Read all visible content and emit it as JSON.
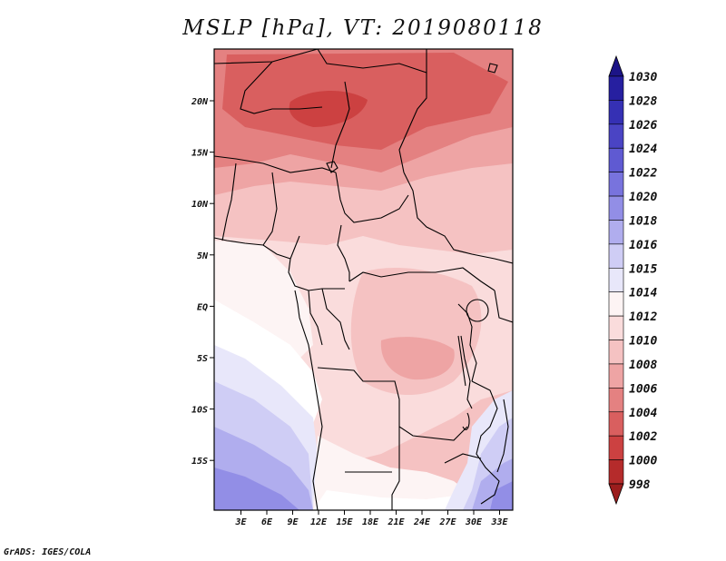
{
  "title": "MSLP [hPa], VT: 2019080118",
  "credit": "GrADS: IGES/COLA",
  "map": {
    "lon_labels": [
      "3E",
      "6E",
      "9E",
      "12E",
      "15E",
      "18E",
      "21E",
      "24E",
      "27E",
      "30E",
      "33E"
    ],
    "lat_labels": [
      "20N",
      "15N",
      "10N",
      "5N",
      "EQ",
      "5S",
      "10S",
      "15S"
    ]
  },
  "colorbar": {
    "labels": [
      "1030",
      "1028",
      "1026",
      "1024",
      "1022",
      "1020",
      "1018",
      "1016",
      "1015",
      "1014",
      "1012",
      "1010",
      "1008",
      "1006",
      "1004",
      "1002",
      "1000",
      "998"
    ],
    "colors": [
      "#1c1487",
      "#261fa0",
      "#3530b4",
      "#4a44c4",
      "#5f5ad2",
      "#7873dd",
      "#928ee6",
      "#b0adee",
      "#cfcdf5",
      "#e8e7fa",
      "#fdf4f4",
      "#fadcdc",
      "#f5c2c2",
      "#eea4a4",
      "#e48181",
      "#d95f5f",
      "#cc4141",
      "#b52b2b",
      "#9b1d1d"
    ]
  }
}
